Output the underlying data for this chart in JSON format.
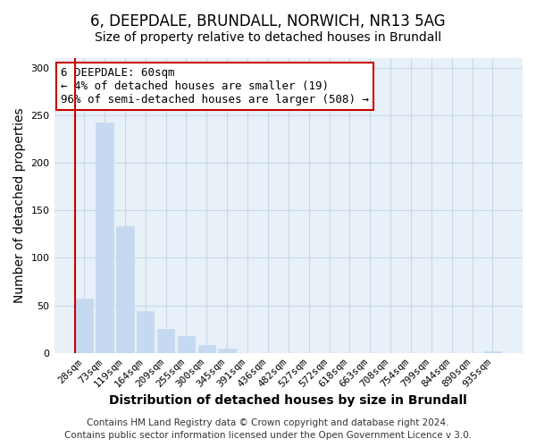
{
  "title": "6, DEEPDALE, BRUNDALL, NORWICH, NR13 5AG",
  "subtitle": "Size of property relative to detached houses in Brundall",
  "xlabel": "Distribution of detached houses by size in Brundall",
  "ylabel": "Number of detached properties",
  "bar_labels": [
    "28sqm",
    "73sqm",
    "119sqm",
    "164sqm",
    "209sqm",
    "255sqm",
    "300sqm",
    "345sqm",
    "391sqm",
    "436sqm",
    "482sqm",
    "527sqm",
    "572sqm",
    "618sqm",
    "663sqm",
    "708sqm",
    "754sqm",
    "799sqm",
    "844sqm",
    "890sqm",
    "935sqm"
  ],
  "bar_values": [
    57,
    242,
    133,
    44,
    25,
    18,
    8,
    5,
    0,
    0,
    0,
    0,
    0,
    0,
    0,
    0,
    0,
    0,
    0,
    0,
    2
  ],
  "bar_color": "#c5d9f0",
  "highlight_color": "#cc0000",
  "highlight_bar_index": 0,
  "ylim": [
    0,
    310
  ],
  "yticks": [
    0,
    50,
    100,
    150,
    200,
    250,
    300
  ],
  "annotation_title": "6 DEEPDALE: 60sqm",
  "annotation_line1": "← 4% of detached houses are smaller (19)",
  "annotation_line2": "96% of semi-detached houses are larger (508) →",
  "footer_line1": "Contains HM Land Registry data © Crown copyright and database right 2024.",
  "footer_line2": "Contains public sector information licensed under the Open Government Licence v 3.0.",
  "title_fontsize": 12,
  "subtitle_fontsize": 10,
  "axis_label_fontsize": 10,
  "tick_fontsize": 8,
  "annotation_fontsize": 9,
  "footer_fontsize": 7.5,
  "grid_color": "#c8d8e8",
  "background_color": "#e8f0f8"
}
